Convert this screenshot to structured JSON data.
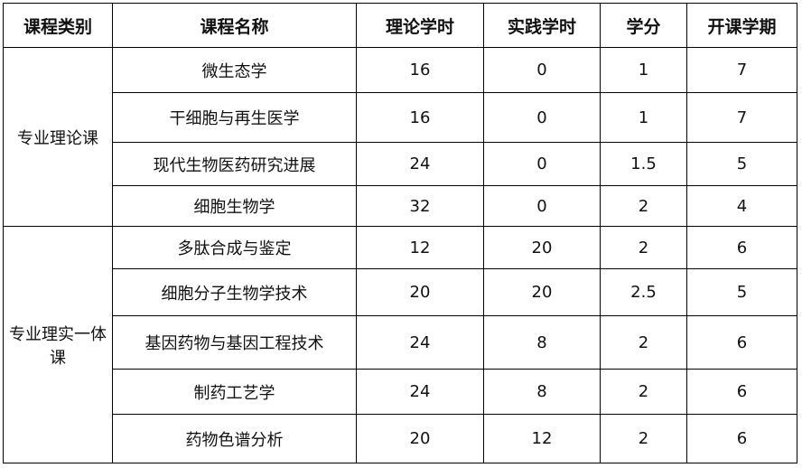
{
  "headers": [
    "课程类别",
    "课程名称",
    "理论学时",
    "实践学时",
    "学分",
    "开课学期"
  ],
  "groups": [
    {
      "category": "专业理论课",
      "rows": [
        [
          "微生态学",
          "16",
          "0",
          "1",
          "7"
        ],
        [
          "干细胞与再生医学",
          "16",
          "0",
          "1",
          "7"
        ],
        [
          "现代生物医药研究进展",
          "24",
          "0",
          "1.5",
          "5"
        ],
        [
          "细胞生物学",
          "32",
          "0",
          "2",
          "4"
        ]
      ]
    },
    {
      "category": "专业理实一体课",
      "rows": [
        [
          "多肽合成与鉴定",
          "12",
          "20",
          "2",
          "6"
        ],
        [
          "细胞分子生物学技术",
          "20",
          "20",
          "2.5",
          "5"
        ],
        [
          "基因药物与基因工程技术",
          "24",
          "8",
          "2",
          "6"
        ],
        [
          "制药工艺学",
          "24",
          "8",
          "2",
          "6"
        ],
        [
          "药物色谱分析",
          "20",
          "12",
          "2",
          "6"
        ]
      ]
    }
  ]
}
